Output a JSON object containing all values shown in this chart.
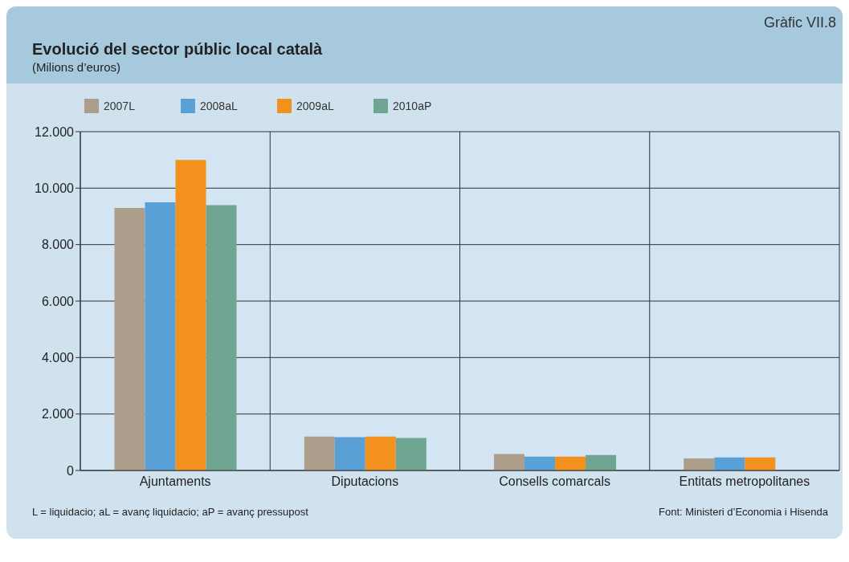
{
  "chart_data": {
    "type": "bar",
    "title": "Evolució del sector públic local català",
    "subtitle": "(Milions d’euros)",
    "categories": [
      "Ajuntaments",
      "Diputacions",
      "Consells comarcals",
      "Entitats metropolitanes"
    ],
    "series": [
      {
        "name": "2007L",
        "color": "#ac9e8a",
        "values": [
          9300,
          1200,
          580,
          430
        ]
      },
      {
        "name": "2008aL",
        "color": "#59a0d6",
        "values": [
          9500,
          1180,
          490,
          460
        ]
      },
      {
        "name": "2009aL",
        "color": "#f3911e",
        "values": [
          11000,
          1200,
          490,
          460
        ]
      },
      {
        "name": "2010aP",
        "color": "#70a592",
        "values": [
          9400,
          1150,
          550,
          null
        ]
      }
    ],
    "ylim": [
      0,
      12000
    ],
    "yticks": [
      {
        "value": 0,
        "label": "0"
      },
      {
        "value": 2000,
        "label": "2.000"
      },
      {
        "value": 4000,
        "label": "4.000"
      },
      {
        "value": 6000,
        "label": "6.000"
      },
      {
        "value": 8000,
        "label": "8.000"
      },
      {
        "value": 10000,
        "label": "10.000"
      },
      {
        "value": 12000,
        "label": "12.000"
      }
    ],
    "grid": true,
    "legend": "top left",
    "annotations": [
      "Gràfic VII.8",
      "L = liquidacio; aL = avanç liquidacio; aP = avanç pressupost",
      "Font: Ministeri d’Economia i Hisenda"
    ]
  }
}
